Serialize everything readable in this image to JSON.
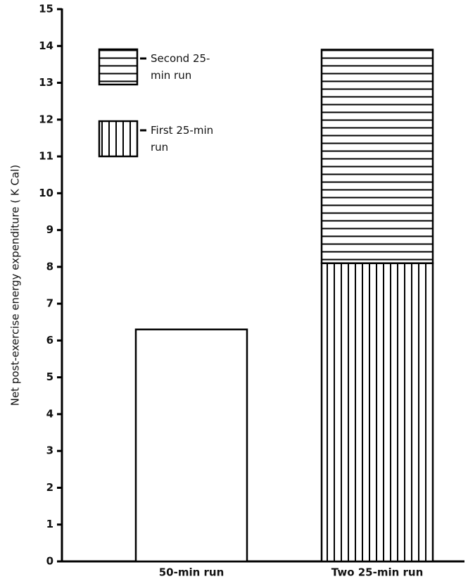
{
  "chart_data": {
    "type": "stacked-bar",
    "y_label": "Net post-exercise energy expenditure ( K Cal)",
    "categories": [
      "50-min run",
      "Two 25-min run"
    ],
    "values": [
      6.3,
      null
    ],
    "series": [
      {
        "name": "First 25-min run",
        "color": "#000000",
        "pattern": "vertical",
        "values": [
          null,
          8.1
        ]
      },
      {
        "name": "Second 25-min run",
        "color": "#000000",
        "pattern": "horizontal",
        "values": [
          null,
          5.8
        ]
      }
    ],
    "ylim": [
      0,
      15
    ],
    "yticks": [
      0,
      1,
      2,
      3,
      4,
      5,
      6,
      7,
      8,
      9,
      10,
      11,
      12,
      13,
      14,
      15
    ]
  }
}
